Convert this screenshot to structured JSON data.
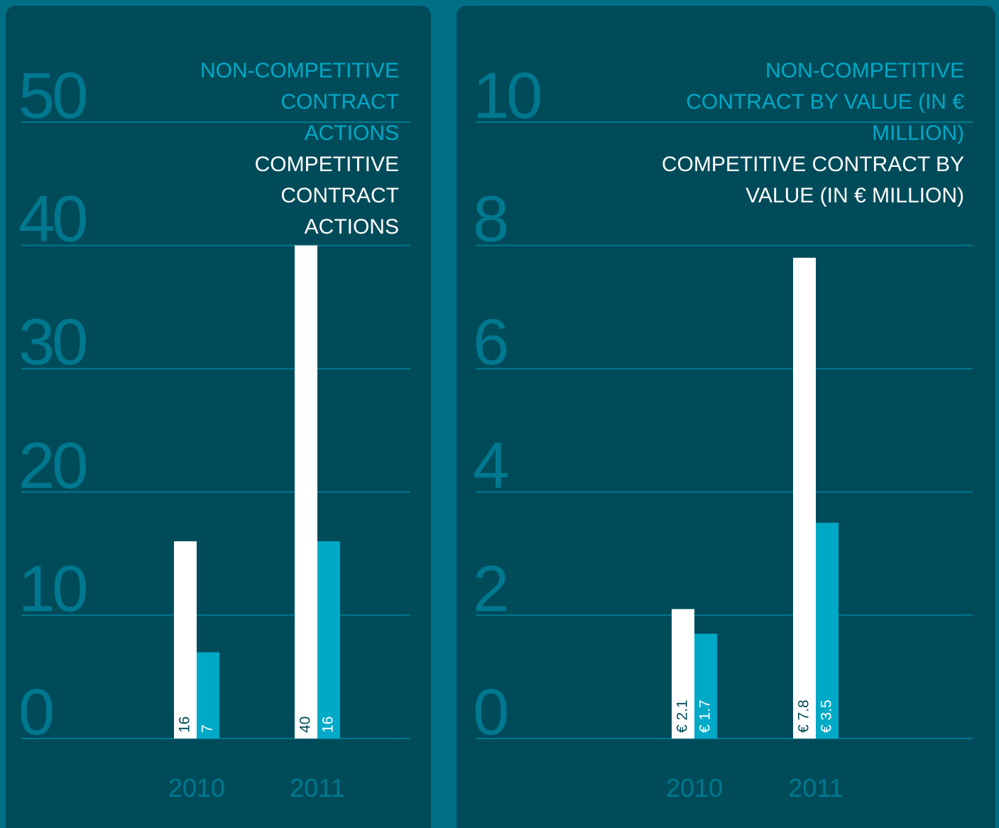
{
  "chart_data": [
    {
      "type": "bar",
      "categories": [
        "2010",
        "2011"
      ],
      "series": [
        {
          "name": "NON-COMPETITIVE CONTRACT ACTIONS",
          "color": "#00a9c6",
          "values": [
            7,
            16
          ]
        },
        {
          "name": "COMPETITIVE CONTRACT ACTIONS",
          "color": "#ffffff",
          "values": [
            16,
            40
          ]
        }
      ],
      "ylim": [
        0,
        50
      ],
      "yticks": [
        0,
        10,
        20,
        30,
        40,
        50
      ],
      "grid": true,
      "legend": "upper right"
    },
    {
      "type": "bar",
      "categories": [
        "2010",
        "2011"
      ],
      "series": [
        {
          "name": "NON-COMPETITIVE CONTRACT BY VALUE (IN € MILLION)",
          "color": "#00a9c6",
          "values": [
            1.7,
            3.5
          ],
          "value_labels": [
            "€ 1.7",
            "€ 3.5"
          ]
        },
        {
          "name": "COMPETITIVE CONTRACT BY VALUE (IN € MILLION)",
          "color": "#ffffff",
          "values": [
            2.1,
            7.8
          ],
          "value_labels": [
            "€ 2.1",
            "€ 7.8"
          ]
        }
      ],
      "ylim": [
        0,
        10
      ],
      "yticks": [
        0,
        2,
        4,
        6,
        8,
        10
      ],
      "grid": true,
      "legend": "upper right"
    }
  ]
}
